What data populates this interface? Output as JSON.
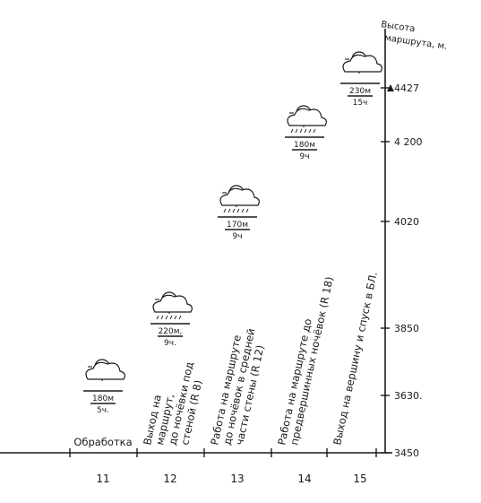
{
  "chart_data": {
    "type": "bar",
    "title": "",
    "ylabel": "Высота маршрута, м.",
    "xlabel": "",
    "x": [
      11,
      12,
      13,
      14,
      15
    ],
    "yticks": [
      "3450",
      "3630.",
      "3850",
      "4020",
      "4 200",
      "4427"
    ],
    "ytick_values": [
      3450,
      3630,
      3850,
      4020,
      4200,
      4427
    ],
    "ylim": [
      3450,
      4427
    ],
    "peak_marker": "triangle-icon",
    "days": [
      {
        "day": 11,
        "altitude": 3630,
        "weather": "sun-cloud-icon",
        "gain": "180м",
        "hours": "5ч.",
        "activity": [
          "Обработка"
        ]
      },
      {
        "day": 12,
        "altitude": 3850,
        "weather": "sun-cloud-rain-icon",
        "gain": "220м,",
        "hours": "9ч.",
        "activity": [
          "Выход на",
          "маршрут,",
          "до ночёвки под",
          "стеной (R 8)"
        ]
      },
      {
        "day": 13,
        "altitude": 4020,
        "weather": "sun-cloud-rain-icon",
        "gain": "170м",
        "hours": "9ч",
        "activity": [
          "Работа на маршруте",
          "до ночёвок в средней",
          "части стены (R 12)"
        ]
      },
      {
        "day": 14,
        "altitude": 4200,
        "weather": "sun-cloud-rain-icon",
        "gain": "180м",
        "hours": "9ч",
        "activity": [
          "Работа на маршруте до",
          "предвершинных ночёвок (R 18)"
        ]
      },
      {
        "day": 15,
        "altitude": 4427,
        "weather": "sun-cloud-icon",
        "gain": "230м",
        "hours": "15ч",
        "activity": [
          "Выход на вершину и спуск в БЛ."
        ]
      }
    ]
  }
}
